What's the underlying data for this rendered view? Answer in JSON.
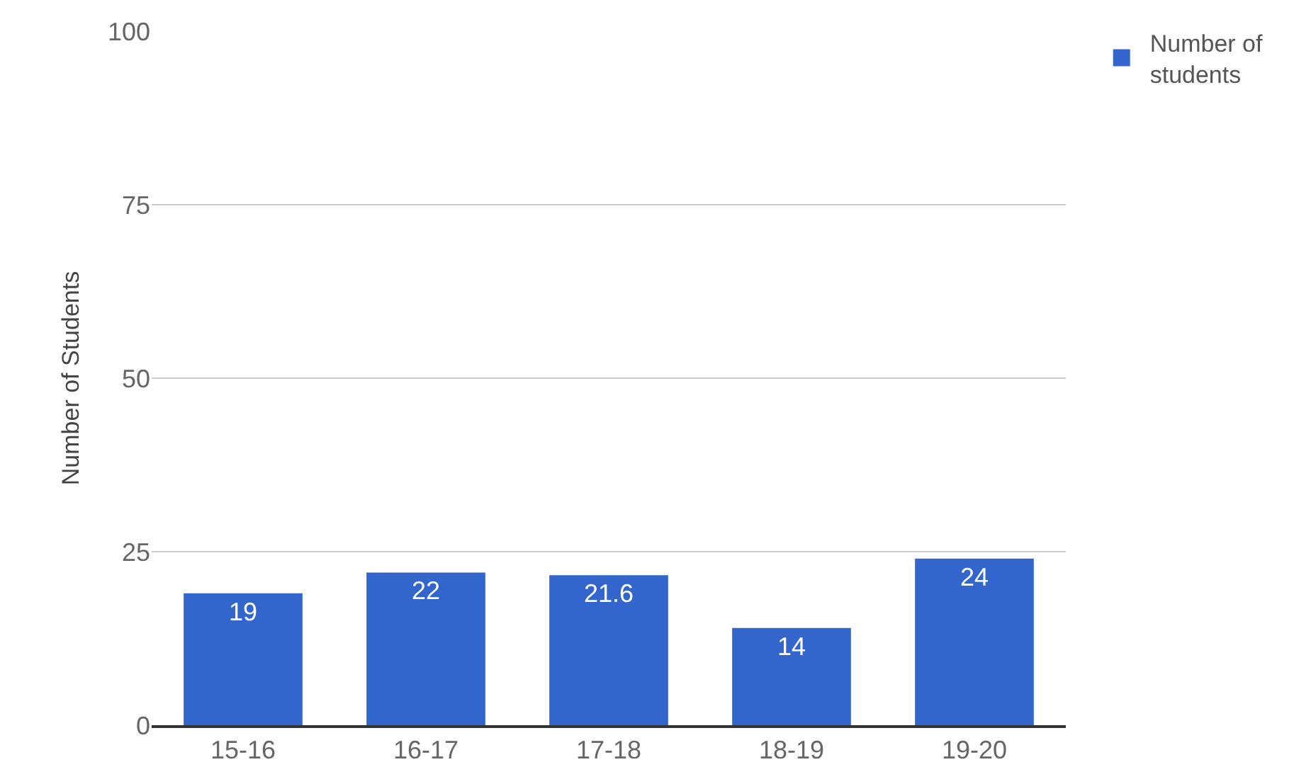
{
  "chart_data": {
    "type": "bar",
    "ylabel": "Number of Students",
    "categories": [
      "15-16",
      "16-17",
      "17-18",
      "18-19",
      "19-20"
    ],
    "series": [
      {
        "name": "Number of students",
        "color": "#3366cc",
        "values": [
          19,
          22,
          21.6,
          14,
          24
        ]
      }
    ],
    "ylim": [
      0,
      100
    ],
    "yticks": [
      0,
      25,
      50,
      75,
      100
    ],
    "grid": "y",
    "legend": "top right",
    "data_labels": true
  }
}
